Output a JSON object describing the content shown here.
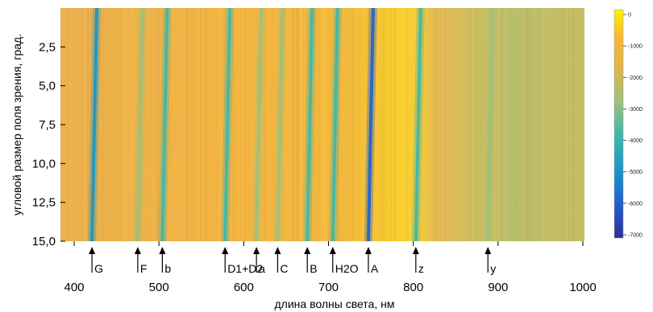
{
  "chart_data": {
    "type": "heatmap",
    "xlabel": "длина волны света, нм",
    "ylabel": "угловой размер поля зрения, град.",
    "xlim": [
      400,
      1000
    ],
    "ylim": [
      0,
      15
    ],
    "y_inverted": true,
    "x_ticks": [
      {
        "value": 400,
        "label": "400"
      },
      {
        "value": 500,
        "label": "500"
      },
      {
        "value": 600,
        "label": "600"
      },
      {
        "value": 700,
        "label": "700"
      },
      {
        "value": 800,
        "label": "800"
      },
      {
        "value": 900,
        "label": "900"
      },
      {
        "value": 1000,
        "label": "1000"
      }
    ],
    "y_ticks": [
      {
        "value": 2.5,
        "label": "2,5"
      },
      {
        "value": 5.0,
        "label": "5,0"
      },
      {
        "value": 7.5,
        "label": "7,5"
      },
      {
        "value": 10.0,
        "label": "10,0"
      },
      {
        "value": 12.5,
        "label": "12,5"
      },
      {
        "value": 15.0,
        "label": "15,0"
      }
    ],
    "colorbar": {
      "ticks": [
        "0",
        "-1000",
        "-2000",
        "-3000",
        "-4000",
        "-5000",
        "-6000",
        "-7000"
      ],
      "range": [
        -7500,
        0
      ],
      "colors": [
        "#fff200",
        "#f7b733",
        "#e0b54a",
        "#9fc07a",
        "#3fb7a8",
        "#1c95c7",
        "#2060d0",
        "#2e2f9a"
      ]
    },
    "absorption_lines": [
      {
        "label": "G",
        "wavelength": 421,
        "intensity": -4400
      },
      {
        "label": "F",
        "wavelength": 475,
        "intensity": -2900
      },
      {
        "label": "b",
        "wavelength": 504,
        "intensity": -4200
      },
      {
        "label": "D1+D2",
        "wavelength": 578,
        "intensity": -3300
      },
      {
        "label": "a",
        "wavelength": 615,
        "intensity": -2800
      },
      {
        "label": "C",
        "wavelength": 640,
        "intensity": -3100
      },
      {
        "label": "B",
        "wavelength": 675,
        "intensity": -4100
      },
      {
        "label": "H2O",
        "wavelength": 705,
        "intensity": -4100
      },
      {
        "label": "A",
        "wavelength": 747,
        "intensity": -5600
      },
      {
        "label": "z",
        "wavelength": 803,
        "intensity": -3300
      },
      {
        "label": "y",
        "wavelength": 888,
        "intensity": -2700
      }
    ]
  }
}
